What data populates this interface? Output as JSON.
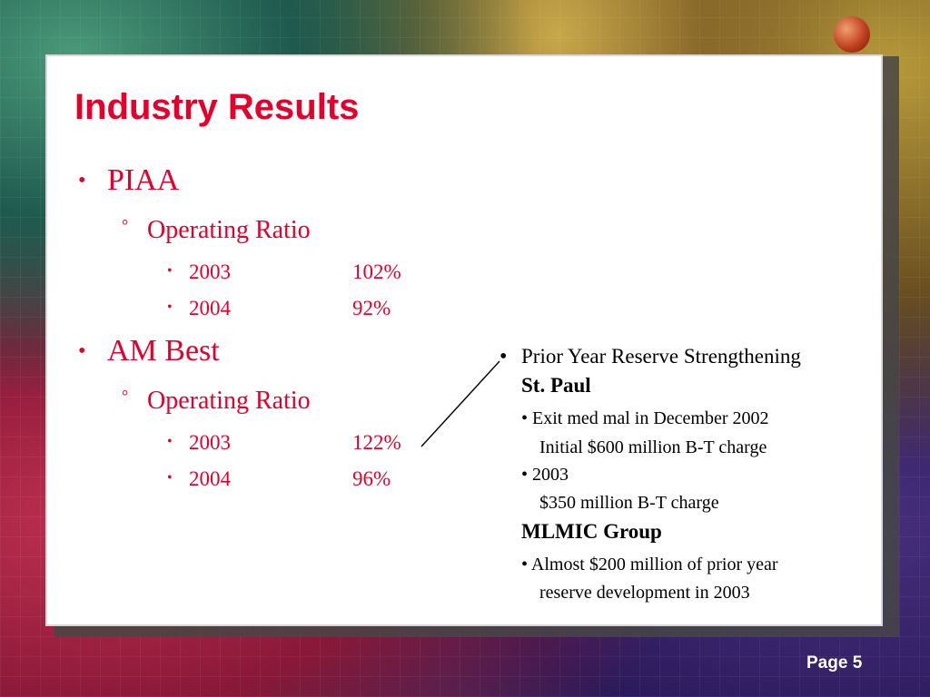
{
  "slide": {
    "title": "Industry Results",
    "sections": [
      {
        "heading": "PIAA",
        "sub": "Operating Ratio",
        "rows": [
          {
            "year": "2003",
            "value": "102%"
          },
          {
            "year": "2004",
            "value": "92%"
          }
        ]
      },
      {
        "heading": "AM Best",
        "sub": "Operating Ratio",
        "rows": [
          {
            "year": "2003",
            "value": "122%"
          },
          {
            "year": "2004",
            "value": "96%"
          }
        ]
      }
    ],
    "note": {
      "header": "Prior Year Reserve Strengthening",
      "group1": "St. Paul",
      "item1": "Exit med mal in December 2002",
      "item1_detail": "Initial $600 million B-T charge",
      "item2": "2003",
      "item2_detail": "$350 million B-T charge",
      "group2": "MLMIC Group",
      "item3": "Almost $200 million of prior year",
      "item3_detail": "reserve development in 2003"
    },
    "bullets": {
      "level1": "•",
      "level2": "°",
      "level3": "•"
    }
  },
  "footer": {
    "page_label": "Page 5"
  }
}
